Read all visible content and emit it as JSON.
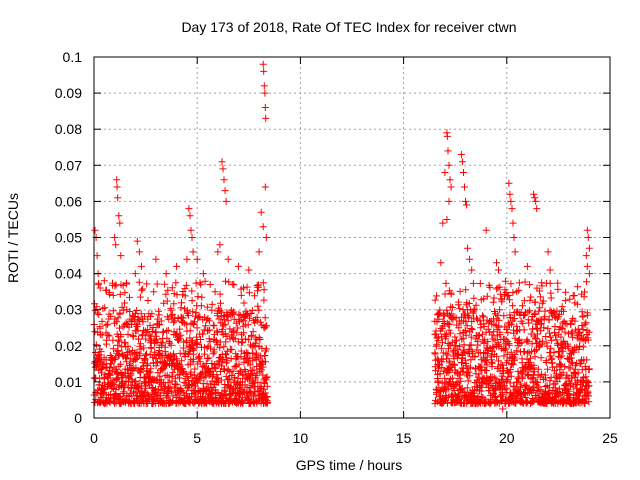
{
  "chart_data": {
    "type": "scatter",
    "title": "Day 173 of 2018, Rate Of TEC Index for receiver ctwn",
    "xlabel": "GPS time / hours",
    "ylabel": "ROTI / TECUs",
    "xlim": [
      0,
      25
    ],
    "ylim": [
      0,
      0.1
    ],
    "x_ticks": [
      0,
      5,
      10,
      15,
      20,
      25
    ],
    "y_ticks": [
      0,
      0.01,
      0.02,
      0.03,
      0.04,
      0.05,
      0.06,
      0.07,
      0.08,
      0.09,
      0.1
    ],
    "x_tick_labels": [
      "0",
      "5",
      "10",
      "15",
      "20",
      "25"
    ],
    "y_tick_labels": [
      "0",
      "0.01",
      "0.02",
      "0.03",
      "0.04",
      "0.05",
      "0.06",
      "0.07",
      "0.08",
      "0.09",
      "0.1"
    ],
    "grid": true,
    "marker": "+",
    "color": "#ff0000",
    "coverage": [
      [
        0,
        8.4
      ],
      [
        16.5,
        24
      ]
    ],
    "typical_range": [
      0.004,
      0.03
    ],
    "series": [
      {
        "name": "ROTI",
        "points": [
          [
            0.05,
            0.052
          ],
          [
            0.1,
            0.05
          ],
          [
            0.15,
            0.045
          ],
          [
            0.2,
            0.04
          ],
          [
            0.3,
            0.036
          ],
          [
            0.5,
            0.038
          ],
          [
            1.1,
            0.066
          ],
          [
            1.12,
            0.064
          ],
          [
            1.15,
            0.061
          ],
          [
            1.2,
            0.056
          ],
          [
            1.25,
            0.054
          ],
          [
            1.0,
            0.05
          ],
          [
            1.05,
            0.048
          ],
          [
            1.3,
            0.045
          ],
          [
            2.1,
            0.049
          ],
          [
            2.2,
            0.046
          ],
          [
            2.3,
            0.042
          ],
          [
            2.0,
            0.04
          ],
          [
            3.0,
            0.044
          ],
          [
            3.5,
            0.04
          ],
          [
            4.0,
            0.042
          ],
          [
            4.6,
            0.058
          ],
          [
            4.65,
            0.056
          ],
          [
            4.7,
            0.052
          ],
          [
            4.75,
            0.05
          ],
          [
            4.8,
            0.046
          ],
          [
            4.5,
            0.044
          ],
          [
            5.0,
            0.044
          ],
          [
            5.3,
            0.04
          ],
          [
            6.2,
            0.071
          ],
          [
            6.25,
            0.069
          ],
          [
            6.3,
            0.066
          ],
          [
            6.35,
            0.063
          ],
          [
            6.4,
            0.06
          ],
          [
            6.1,
            0.048
          ],
          [
            6.5,
            0.044
          ],
          [
            6.0,
            0.046
          ],
          [
            7.0,
            0.042
          ],
          [
            7.5,
            0.041
          ],
          [
            8.2,
            0.098
          ],
          [
            8.22,
            0.096
          ],
          [
            8.25,
            0.092
          ],
          [
            8.28,
            0.09
          ],
          [
            8.3,
            0.086
          ],
          [
            8.32,
            0.083
          ],
          [
            8.3,
            0.064
          ],
          [
            8.1,
            0.057
          ],
          [
            8.2,
            0.053
          ],
          [
            8.35,
            0.05
          ],
          [
            8.0,
            0.046
          ],
          [
            16.8,
            0.043
          ],
          [
            16.9,
            0.054
          ],
          [
            17.0,
            0.068
          ],
          [
            17.1,
            0.079
          ],
          [
            17.12,
            0.078
          ],
          [
            17.15,
            0.074
          ],
          [
            17.2,
            0.07
          ],
          [
            17.25,
            0.066
          ],
          [
            17.3,
            0.064
          ],
          [
            17.2,
            0.06
          ],
          [
            17.1,
            0.055
          ],
          [
            17.8,
            0.073
          ],
          [
            17.85,
            0.071
          ],
          [
            17.9,
            0.068
          ],
          [
            17.95,
            0.064
          ],
          [
            18.0,
            0.06
          ],
          [
            18.05,
            0.059
          ],
          [
            18.1,
            0.047
          ],
          [
            18.2,
            0.044
          ],
          [
            18.3,
            0.041
          ],
          [
            19.0,
            0.052
          ],
          [
            19.5,
            0.043
          ],
          [
            19.6,
            0.041
          ],
          [
            19.8,
            0.0025
          ],
          [
            20.1,
            0.065
          ],
          [
            20.15,
            0.062
          ],
          [
            20.2,
            0.06
          ],
          [
            20.25,
            0.058
          ],
          [
            20.3,
            0.054
          ],
          [
            20.35,
            0.05
          ],
          [
            20.4,
            0.046
          ],
          [
            21.3,
            0.062
          ],
          [
            21.35,
            0.061
          ],
          [
            21.4,
            0.06
          ],
          [
            21.45,
            0.058
          ],
          [
            21.0,
            0.042
          ],
          [
            22.0,
            0.046
          ],
          [
            22.1,
            0.041
          ],
          [
            23.9,
            0.052
          ],
          [
            23.95,
            0.05
          ],
          [
            24.0,
            0.047
          ],
          [
            23.85,
            0.045
          ],
          [
            23.9,
            0.042
          ],
          [
            24.0,
            0.04
          ]
        ]
      }
    ]
  }
}
